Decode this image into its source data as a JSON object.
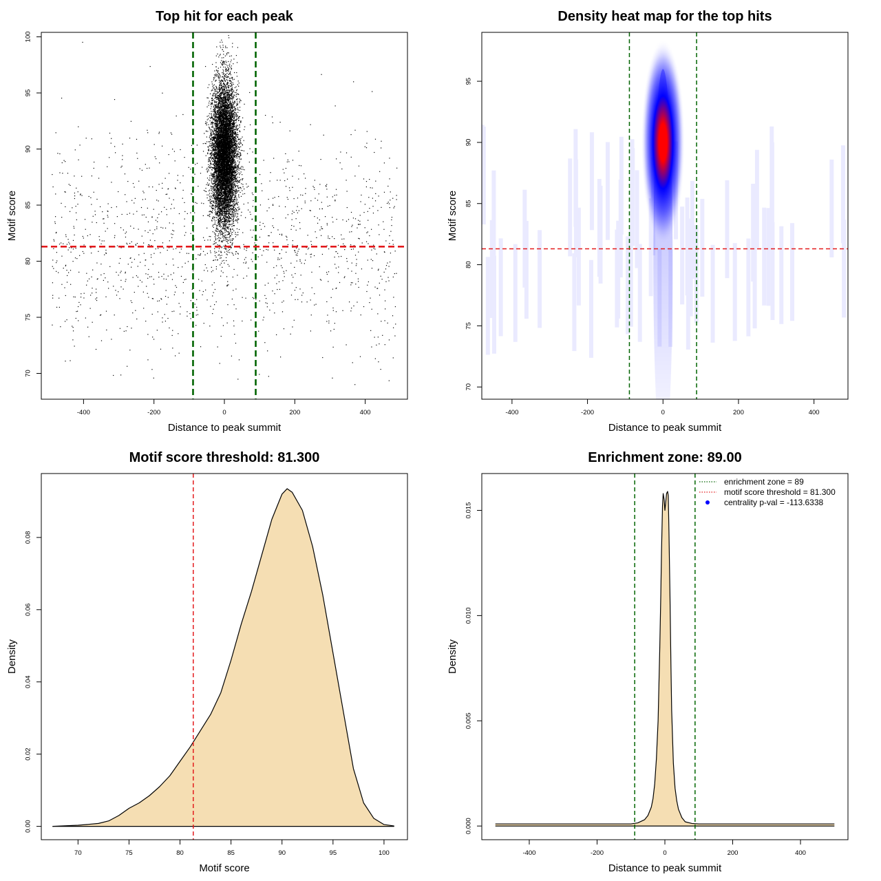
{
  "chart_data": [
    {
      "type": "scatter",
      "title": "Top hit for each peak",
      "xlabel": "Distance to peak summit",
      "ylabel": "Motif score",
      "xlim": [
        -520,
        520
      ],
      "ylim": [
        67.7,
        100.4
      ],
      "xticks": [
        -400,
        -200,
        0,
        200,
        400
      ],
      "yticks": [
        70,
        75,
        80,
        85,
        90,
        95,
        100
      ],
      "xtick_labels": [
        "-400",
        "-200",
        "0",
        "200",
        "400"
      ],
      "ytick_labels": [
        "70",
        "75",
        "80",
        "85",
        "90",
        "95",
        "100"
      ],
      "vlines": [
        -89,
        89
      ],
      "hline": 81.3,
      "vline_color": "#006400",
      "hline_color": "#e31a1c",
      "point_color": "#000000",
      "distribution": {
        "central_points": 9000,
        "central_x_sd": 18,
        "central_y_mean": 89.5,
        "central_y_sd": 3.2,
        "background_points": 1300,
        "background_y_mean": 81.5,
        "background_y_sd": 4.8,
        "x_range": [
          -490,
          490
        ]
      }
    },
    {
      "type": "heatmap",
      "title": "Density heat map for the top hits",
      "xlabel": "Distance to peak summit",
      "ylabel": "Motif score",
      "xlim": [
        -480,
        490
      ],
      "ylim": [
        69,
        99
      ],
      "xticks": [
        -400,
        -200,
        0,
        200,
        400
      ],
      "yticks": [
        70,
        75,
        80,
        85,
        90,
        95
      ],
      "xtick_labels": [
        "-400",
        "-200",
        "0",
        "200",
        "400"
      ],
      "ytick_labels": [
        "70",
        "75",
        "80",
        "85",
        "90",
        "95"
      ],
      "vlines": [
        -89,
        89
      ],
      "hline": 81.3,
      "vline_color": "#006400",
      "hline_color": "#e31a1c",
      "color_scale": [
        "#ffffff",
        "#0000ff",
        "#ff0000"
      ],
      "density_center": [
        0,
        90
      ]
    },
    {
      "type": "area",
      "title": "Motif score threshold: 81.300",
      "xlabel": "Motif score",
      "ylabel": "Density",
      "xlim": [
        66.4,
        102.3
      ],
      "ylim": [
        -0.0037,
        0.0977
      ],
      "xticks": [
        70,
        75,
        80,
        85,
        90,
        95,
        100
      ],
      "yticks": [
        0.0,
        0.02,
        0.04,
        0.06,
        0.08
      ],
      "xtick_labels": [
        "70",
        "75",
        "80",
        "85",
        "90",
        "95",
        "100"
      ],
      "ytick_labels": [
        "0.00",
        "0.02",
        "0.04",
        "0.06",
        "0.08"
      ],
      "vline": 81.3,
      "vline_color": "#e31a1c",
      "fill": "#f5deb3",
      "x": [
        67.5,
        70,
        72,
        73,
        74,
        75,
        76,
        77,
        78,
        79,
        80,
        81,
        82,
        83,
        84,
        85,
        86,
        87,
        88,
        89,
        90,
        90.5,
        91,
        92,
        93,
        94,
        95,
        96,
        97,
        98,
        99,
        100,
        101
      ],
      "y": [
        0,
        0.0003,
        0.0008,
        0.0015,
        0.003,
        0.005,
        0.0065,
        0.0085,
        0.011,
        0.014,
        0.018,
        0.022,
        0.0265,
        0.031,
        0.037,
        0.046,
        0.056,
        0.065,
        0.075,
        0.085,
        0.092,
        0.0935,
        0.0925,
        0.0875,
        0.0775,
        0.064,
        0.048,
        0.032,
        0.016,
        0.0065,
        0.0022,
        0.0005,
        0.0001
      ]
    },
    {
      "type": "area",
      "title": "Enrichment zone: 89.00",
      "xlabel": "Distance to peak summit",
      "ylabel": "Density",
      "xlim": [
        -540,
        540
      ],
      "ylim": [
        -0.00065,
        0.01675
      ],
      "xticks": [
        -400,
        -200,
        0,
        200,
        400
      ],
      "yticks": [
        0.0,
        0.005,
        0.01,
        0.015
      ],
      "xtick_labels": [
        "-400",
        "-200",
        "0",
        "200",
        "400"
      ],
      "ytick_labels": [
        "0.000",
        "0.005",
        "0.010",
        "0.015"
      ],
      "vlines": [
        -89,
        89
      ],
      "vline_color": "#006400",
      "fill": "#f5deb3",
      "x": [
        -500,
        -100,
        -80,
        -60,
        -50,
        -40,
        -35,
        -30,
        -25,
        -20,
        -15,
        -12,
        -10,
        -7,
        -5,
        -2,
        0,
        2,
        5,
        8,
        10,
        12,
        15,
        18,
        20,
        25,
        30,
        35,
        40,
        50,
        60,
        80,
        100,
        500
      ],
      "y": [
        0.0001,
        0.0001,
        0.00015,
        0.0003,
        0.0005,
        0.0009,
        0.0013,
        0.002,
        0.0032,
        0.005,
        0.0085,
        0.011,
        0.013,
        0.0152,
        0.0158,
        0.0155,
        0.015,
        0.0153,
        0.0158,
        0.0159,
        0.0157,
        0.014,
        0.011,
        0.0075,
        0.0055,
        0.003,
        0.0018,
        0.0012,
        0.0008,
        0.0004,
        0.0002,
        0.00012,
        0.0001,
        0.0001
      ],
      "legend": {
        "position": "top-right",
        "entries": [
          {
            "label": "enrichment zone = 89",
            "color": "#006400",
            "style": "dotted-line"
          },
          {
            "label": "motif score threshold = 81.300",
            "color": "#e31a1c",
            "style": "dotted-line"
          },
          {
            "label": "centrality p-val = -113.6338",
            "color": "#0000ff",
            "style": "point"
          }
        ]
      }
    }
  ]
}
